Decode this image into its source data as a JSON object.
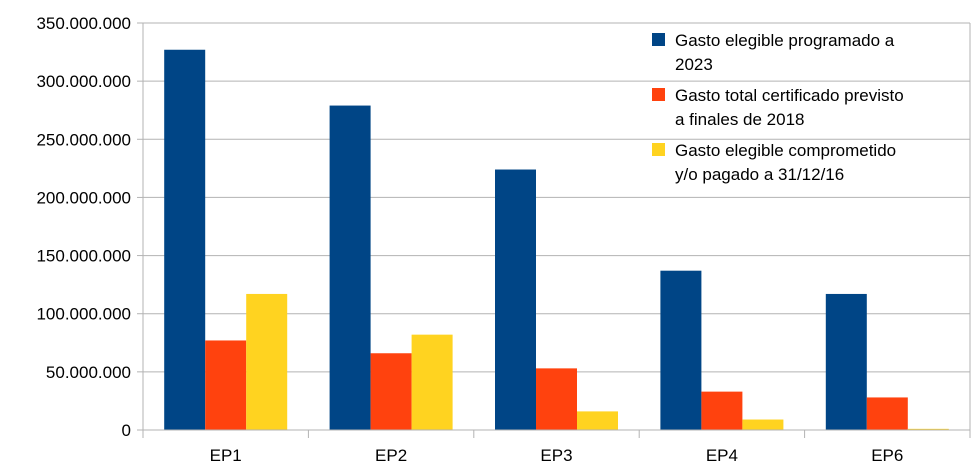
{
  "chart_data": {
    "type": "bar",
    "categories": [
      "EP1",
      "EP2",
      "EP3",
      "EP4",
      "EP6"
    ],
    "series": [
      {
        "name_lines": [
          "Gasto elegible programado a",
          "2023"
        ],
        "color": "#004586",
        "values": [
          327000000,
          279000000,
          224000000,
          137000000,
          117000000
        ]
      },
      {
        "name_lines": [
          "Gasto total certificado  previsto",
          "a finales de 2018"
        ],
        "color": "#ff420e",
        "values": [
          77000000,
          66000000,
          53000000,
          33000000,
          28000000
        ]
      },
      {
        "name_lines": [
          "Gasto elegible comprometido",
          "y/o pagado a 31/12/16"
        ],
        "color": "#ffd320",
        "values": [
          117000000,
          82000000,
          16000000,
          9000000,
          1000000
        ]
      }
    ],
    "y_ticks": [
      0,
      50000000,
      100000000,
      150000000,
      200000000,
      250000000,
      300000000,
      350000000
    ],
    "y_tick_labels": [
      "0",
      "50.000.000",
      "100.000.000",
      "150.000.000",
      "200.000.000",
      "250.000.000",
      "300.000.000",
      "350.000.000"
    ],
    "ylim": [
      0,
      350000000
    ],
    "grid": true,
    "legend_position": "top-right"
  }
}
